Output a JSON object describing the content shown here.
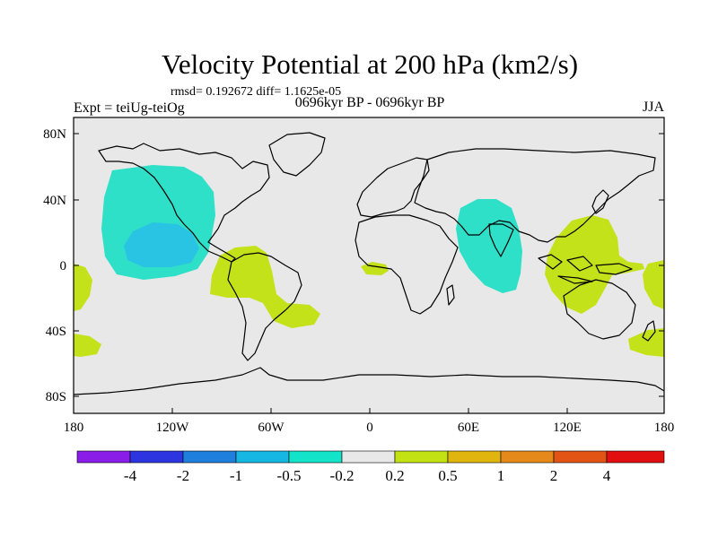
{
  "title": "Velocity Potential at 200 hPa (km2/s)",
  "stats": "rmsd= 0.192672 diff= 1.1625e-05",
  "experiment": "Expt = teiUg-teiOg",
  "period": "0696kyr BP - 0696kyr BP",
  "season": "JJA",
  "lat_ticks": [
    "80N",
    "40N",
    "0",
    "40S",
    "80S"
  ],
  "lon_ticks": [
    "180",
    "120W",
    "60W",
    "0",
    "60E",
    "120E",
    "180"
  ],
  "colorbar": {
    "labels": [
      "-4",
      "-2",
      "-1",
      "-0.5",
      "-0.2",
      "0.2",
      "0.5",
      "1",
      "2",
      "4"
    ],
    "colors": [
      "#8a1ee8",
      "#2d35e0",
      "#1f7fdc",
      "#17b7e3",
      "#13e3c8",
      "#e8e8e8",
      "#c2e214",
      "#e0b60e",
      "#e5891a",
      "#e25414",
      "#e10f0f"
    ]
  },
  "fill_colors": {
    "ocean_land": "#e8e8e8",
    "neg_0_2": "#2fe0c8",
    "neg_0_5": "#29c4e4",
    "pos_0_2": "#c4e21a"
  }
}
